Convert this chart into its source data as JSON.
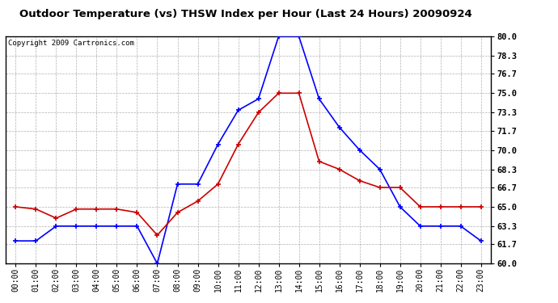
{
  "title": "Outdoor Temperature (vs) THSW Index per Hour (Last 24 Hours) 20090924",
  "copyright": "Copyright 2009 Cartronics.com",
  "hours": [
    0,
    1,
    2,
    3,
    4,
    5,
    6,
    7,
    8,
    9,
    10,
    11,
    12,
    13,
    14,
    15,
    16,
    17,
    18,
    19,
    20,
    21,
    22,
    23
  ],
  "blue_thsw": [
    62.0,
    62.0,
    63.3,
    63.3,
    63.3,
    63.3,
    63.3,
    60.0,
    67.0,
    67.0,
    70.5,
    73.5,
    74.5,
    80.0,
    80.0,
    74.5,
    72.0,
    70.0,
    68.3,
    65.0,
    63.3,
    63.3,
    63.3,
    62.0
  ],
  "red_temp": [
    65.0,
    64.8,
    64.0,
    64.8,
    64.8,
    64.8,
    64.5,
    62.5,
    64.5,
    65.5,
    67.0,
    70.5,
    73.3,
    75.0,
    75.0,
    69.0,
    68.3,
    67.3,
    66.7,
    66.7,
    65.0,
    65.0,
    65.0,
    65.0
  ],
  "ylim": [
    60.0,
    80.0
  ],
  "yticks": [
    60.0,
    61.7,
    63.3,
    65.0,
    66.7,
    68.3,
    70.0,
    71.7,
    73.3,
    75.0,
    76.7,
    78.3,
    80.0
  ],
  "blue_color": "#0000ff",
  "red_color": "#cc0000",
  "grid_color": "#b0b0b0",
  "bg_color": "#ffffff",
  "title_fontsize": 9.5,
  "copyright_fontsize": 6.5,
  "tick_fontsize": 7,
  "ytick_fontsize": 7.5
}
